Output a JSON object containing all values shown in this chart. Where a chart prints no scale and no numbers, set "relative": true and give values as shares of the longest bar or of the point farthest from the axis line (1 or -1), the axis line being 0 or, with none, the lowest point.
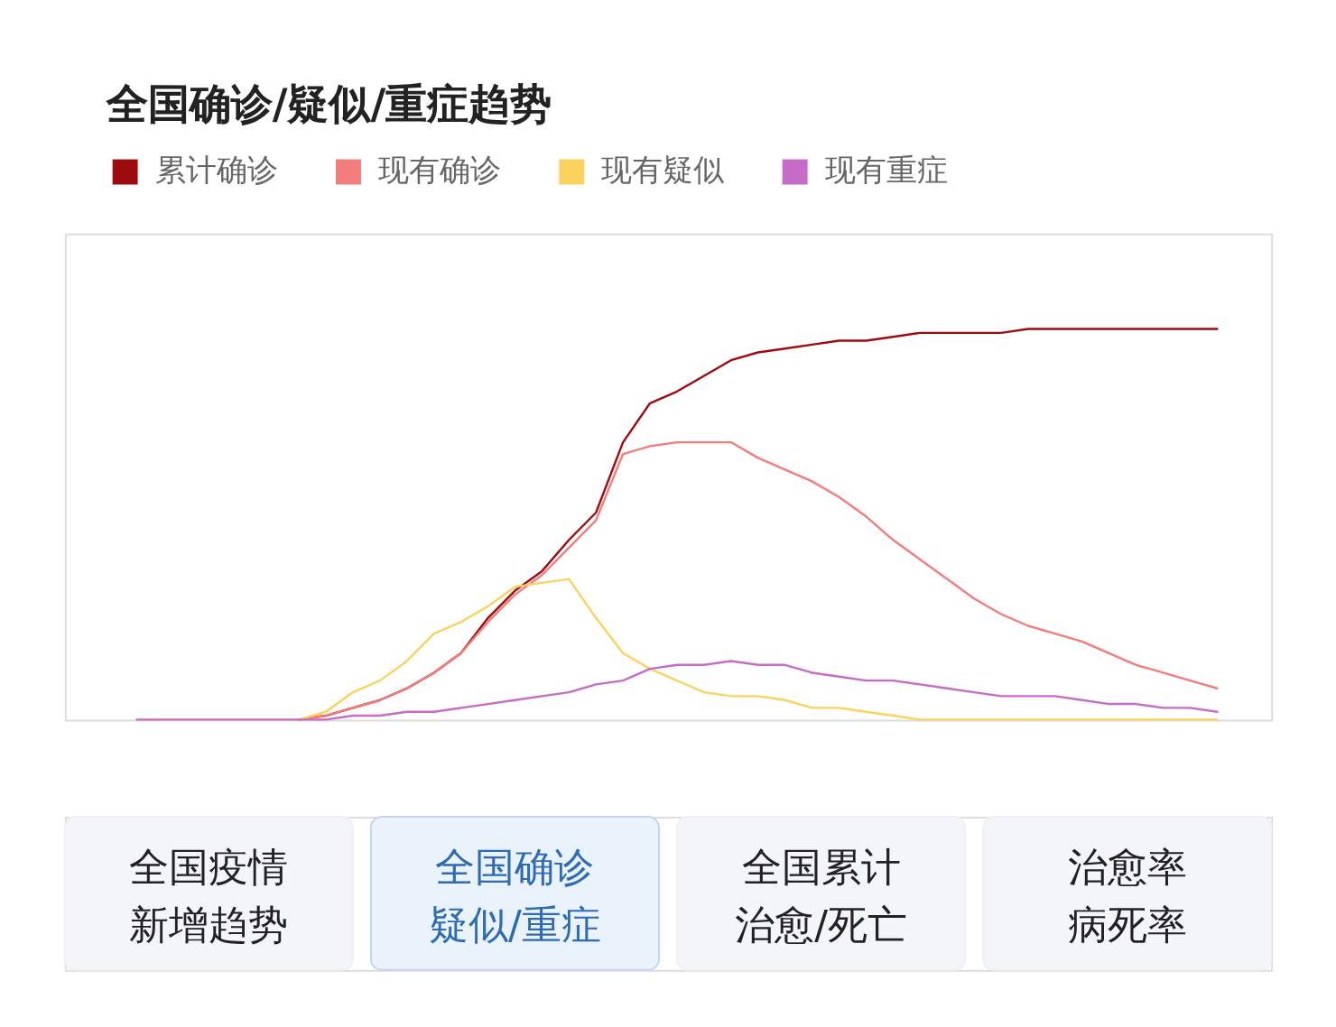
{
  "chart_data": {
    "type": "line",
    "title": "全国确诊/疑似/重症趋势",
    "relative": true,
    "legend": "top left",
    "categories": [
      null,
      null,
      null,
      null,
      null,
      null,
      null,
      null,
      null,
      null,
      null,
      null,
      null,
      null,
      null,
      null,
      null,
      null,
      null,
      null,
      null,
      null,
      null,
      null,
      null,
      null,
      null,
      null,
      null,
      null,
      null,
      null,
      null,
      null,
      null,
      null,
      null,
      null,
      null,
      null,
      null
    ],
    "series": [
      {
        "name": "累计确诊",
        "color": "#9e0b0f",
        "values": [
          null,
          null,
          null,
          null,
          null,
          null,
          0,
          0.01,
          0.03,
          0.05,
          0.08,
          0.12,
          0.17,
          0.26,
          0.33,
          0.38,
          0.46,
          0.53,
          0.71,
          0.81,
          0.84,
          0.88,
          0.92,
          0.94,
          0.95,
          0.96,
          0.97,
          0.97,
          0.98,
          0.99,
          0.99,
          0.99,
          0.99,
          1,
          1,
          1,
          1,
          1,
          1,
          1,
          1
        ]
      },
      {
        "name": "现有确诊",
        "color": "#f47c7c",
        "values": [
          null,
          null,
          null,
          null,
          null,
          null,
          0,
          0.01,
          0.03,
          0.05,
          0.08,
          0.12,
          0.17,
          0.25,
          0.32,
          0.37,
          0.44,
          0.51,
          0.68,
          0.7,
          0.71,
          0.71,
          0.71,
          0.67,
          0.64,
          0.61,
          0.57,
          0.52,
          0.46,
          0.41,
          0.36,
          0.31,
          0.27,
          0.24,
          0.22,
          0.2,
          0.17,
          0.14,
          0.12,
          0.1,
          0.08
        ]
      },
      {
        "name": "现有疑似",
        "color": "#fcd25e",
        "values": [
          null,
          null,
          null,
          null,
          null,
          null,
          0,
          0.02,
          0.07,
          0.1,
          0.15,
          0.22,
          0.25,
          0.29,
          0.34,
          0.35,
          0.36,
          0.26,
          0.17,
          0.13,
          0.1,
          0.07,
          0.06,
          0.06,
          0.05,
          0.03,
          0.03,
          0.02,
          0.01,
          0,
          0,
          0,
          0,
          0,
          0,
          0,
          0,
          0,
          0,
          0,
          0
        ]
      },
      {
        "name": "现有重症",
        "color": "#c66bc6",
        "values": [
          0,
          0,
          0,
          0,
          0,
          0,
          0,
          0,
          0.01,
          0.01,
          0.02,
          0.02,
          0.03,
          0.04,
          0.05,
          0.06,
          0.07,
          0.09,
          0.1,
          0.13,
          0.14,
          0.14,
          0.15,
          0.14,
          0.14,
          0.12,
          0.11,
          0.1,
          0.1,
          0.09,
          0.08,
          0.07,
          0.06,
          0.06,
          0.06,
          0.05,
          0.04,
          0.04,
          0.03,
          0.03,
          0.02
        ]
      }
    ],
    "annotations": [
      "全国疫情新增趋势",
      "全国确诊疑似/重症",
      "全国累计治愈/死亡",
      "治愈率病死率"
    ]
  }
}
